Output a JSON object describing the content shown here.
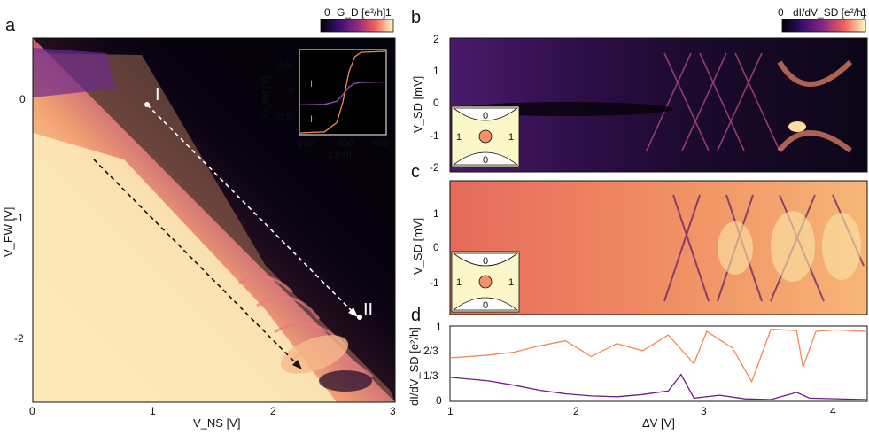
{
  "panel_a": {
    "letter": "a",
    "colorbar": {
      "label": "G_D [e²/h]",
      "min": "0",
      "max": "1"
    },
    "xlabel": "V_NS [V]",
    "ylabel": "V_EW [V]",
    "xticks": [
      "0",
      "1",
      "2",
      "3"
    ],
    "yticks": [
      "0",
      "-1",
      "-2"
    ],
    "markers": {
      "start": "I",
      "end": "II"
    },
    "inset": {
      "xlabel": "x [nm]",
      "ylabel": "Φ_ext [V]",
      "xticks": [
        "100",
        "200",
        "300",
        "400",
        "500",
        "600"
      ],
      "yticks": [
        "0.5",
        "0",
        "-0.5"
      ],
      "curve_labels": [
        "I",
        "II"
      ]
    }
  },
  "panel_b": {
    "letter": "b",
    "colorbar": {
      "label": "dI/dV_SD [e²/h]",
      "min": "0",
      "max": "1"
    },
    "ylabel": "V_SD [mV]",
    "yticks": [
      "2",
      "1",
      "0",
      "-1",
      "-2"
    ],
    "schematic": {
      "top": "0",
      "bottom": "0",
      "left": "1",
      "right": "1"
    }
  },
  "panel_c": {
    "letter": "c",
    "ylabel": "V_SD [mV]",
    "yticks": [
      "1",
      "0",
      "-1"
    ],
    "schematic": {
      "top": "0",
      "bottom": "0",
      "left": "1",
      "right": "1"
    }
  },
  "panel_d": {
    "letter": "d",
    "ylabel": "dI/dV_SD [e²/h]",
    "yticks": [
      "1",
      "2/3",
      "1/3",
      "0"
    ],
    "xlabel": "ΔV [V]",
    "xticks": [
      "1",
      "2",
      "3",
      "4"
    ]
  },
  "chart_data": [
    {
      "type": "line",
      "panel": "a-inset",
      "x_range": [
        0,
        700
      ],
      "ylim": [
        -0.8,
        0.8
      ],
      "series": [
        {
          "name": "I",
          "color": "#9b4dc6",
          "x": [
            0,
            200,
            300,
            350,
            400,
            450,
            500,
            700
          ],
          "y": [
            -0.25,
            -0.24,
            -0.18,
            -0.05,
            0.1,
            0.17,
            0.19,
            0.2
          ]
        },
        {
          "name": "II",
          "color": "#f08a55",
          "x": [
            0,
            200,
            300,
            350,
            400,
            450,
            500,
            700
          ],
          "y": [
            -0.8,
            -0.78,
            -0.6,
            -0.2,
            0.4,
            0.7,
            0.78,
            0.8
          ]
        }
      ]
    },
    {
      "type": "line",
      "panel": "d",
      "x_range": [
        1,
        4.25
      ],
      "ylim": [
        0,
        1
      ],
      "series": [
        {
          "color": "#f08a55",
          "x": [
            1.0,
            1.3,
            1.5,
            1.7,
            1.9,
            2.1,
            2.3,
            2.5,
            2.7,
            2.9,
            3.0,
            3.2,
            3.35,
            3.5,
            3.7,
            3.75,
            3.85,
            4.0,
            4.25
          ],
          "y": [
            0.58,
            0.62,
            0.66,
            0.75,
            0.82,
            0.6,
            0.78,
            0.68,
            0.9,
            0.5,
            0.95,
            0.72,
            0.25,
            0.98,
            0.96,
            0.45,
            0.95,
            0.97,
            0.95
          ]
        },
        {
          "color": "#6b1e83",
          "x": [
            1.0,
            1.3,
            1.5,
            1.7,
            1.9,
            2.1,
            2.3,
            2.5,
            2.7,
            2.8,
            2.9,
            3.1,
            3.3,
            3.5,
            3.6,
            3.7,
            3.8,
            4.25
          ],
          "y": [
            0.31,
            0.26,
            0.2,
            0.13,
            0.08,
            0.05,
            0.04,
            0.07,
            0.12,
            0.35,
            0.02,
            0.06,
            0.01,
            0.0,
            0.05,
            0.1,
            0.02,
            0.0
          ]
        }
      ]
    }
  ]
}
